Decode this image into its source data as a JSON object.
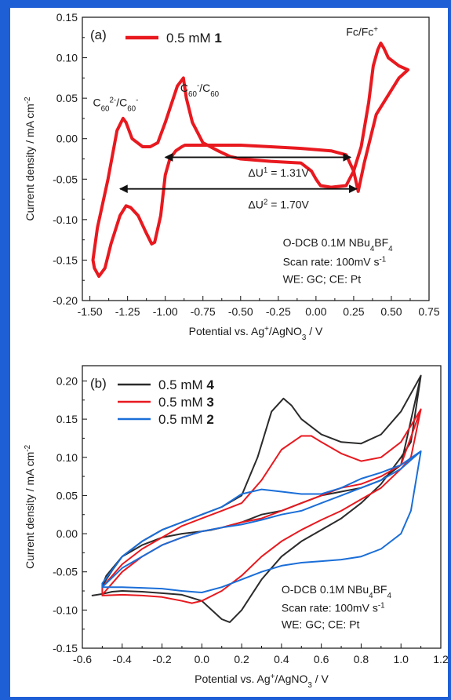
{
  "chart_data": [
    {
      "type": "line",
      "panel_label": "(a)",
      "xlabel": {
        "pre": "Potential vs. Ag",
        "sup": "+",
        "post": "/AgNO",
        "sub": "3",
        "post2": " / V"
      },
      "ylabel": {
        "pre": "Current density / mA cm",
        "sup": "-2"
      },
      "xlim": [
        -1.55,
        0.75
      ],
      "ylim": [
        -0.2,
        0.15
      ],
      "xticks": [
        "-1.50",
        "-1.25",
        "-1.00",
        "-0.75",
        "-0.50",
        "-0.25",
        "0.00",
        "0.25",
        "0.50",
        "0.75"
      ],
      "yticks": [
        "0.15",
        "0.10",
        "0.05",
        "0.00",
        "-0.05",
        "-0.10",
        "-0.15",
        "-0.20"
      ],
      "legend_placement": "top-left",
      "series": [
        {
          "name": "0.5 mM 1",
          "legend_pre": "0.5 mM ",
          "legend_bold": "1",
          "color": "#e8191f",
          "x": [
            0.61,
            0.55,
            0.48,
            0.45,
            0.43,
            0.41,
            0.38,
            0.35,
            0.3,
            0.25,
            0.2,
            0.1,
            0.03,
            0.0,
            -0.03,
            -0.1,
            -0.3,
            -0.5,
            -0.57,
            -0.65,
            -0.75,
            -0.82,
            -0.86,
            -0.88,
            -0.92,
            -1.0,
            -1.05,
            -1.1,
            -1.15,
            -1.22,
            -1.26,
            -1.28,
            -1.32,
            -1.38,
            -1.45,
            -1.48,
            -1.47,
            -1.44,
            -1.4,
            -1.36,
            -1.3,
            -1.26,
            -1.23,
            -1.18,
            -1.13,
            -1.09,
            -1.07,
            -1.03,
            -1.0,
            -0.97,
            -0.93,
            -0.89,
            -0.87,
            -0.85,
            -0.8,
            -0.7,
            -0.5,
            -0.3,
            -0.1,
            0.1,
            0.2,
            0.25,
            0.28,
            0.32,
            0.4,
            0.55,
            0.61
          ],
          "y": [
            0.085,
            0.09,
            0.1,
            0.112,
            0.118,
            0.11,
            0.09,
            0.045,
            -0.01,
            -0.04,
            -0.058,
            -0.06,
            -0.058,
            -0.05,
            -0.04,
            -0.03,
            -0.028,
            -0.025,
            -0.022,
            -0.015,
            -0.005,
            0.02,
            0.05,
            0.075,
            0.065,
            0.02,
            -0.005,
            -0.01,
            -0.01,
            0.0,
            0.02,
            0.025,
            0.01,
            -0.05,
            -0.11,
            -0.15,
            -0.16,
            -0.17,
            -0.16,
            -0.13,
            -0.095,
            -0.083,
            -0.085,
            -0.095,
            -0.115,
            -0.13,
            -0.128,
            -0.095,
            -0.045,
            -0.025,
            -0.015,
            -0.01,
            -0.008,
            -0.008,
            -0.008,
            -0.008,
            -0.008,
            -0.01,
            -0.012,
            -0.015,
            -0.02,
            -0.04,
            -0.065,
            -0.03,
            0.03,
            0.075,
            0.085
          ]
        }
      ],
      "annotations": [
        {
          "kind": "label",
          "x": -1.48,
          "y": 0.04,
          "parts": [
            [
              "C",
              "n"
            ],
            [
              "60",
              "sub"
            ],
            [
              "2-",
              "sup"
            ],
            [
              "/C",
              "n"
            ],
            [
              "60",
              "sub"
            ],
            [
              "-",
              "sup"
            ]
          ]
        },
        {
          "kind": "label",
          "x": -0.9,
          "y": 0.058,
          "parts": [
            [
              "C",
              "n"
            ],
            [
              "60",
              "sub"
            ],
            [
              "-",
              "sup"
            ],
            [
              "/C",
              "n"
            ],
            [
              "60",
              "sub"
            ]
          ]
        },
        {
          "kind": "label",
          "x": 0.2,
          "y": 0.127,
          "parts": [
            [
              "Fc/Fc",
              "n"
            ],
            [
              "+",
              "sup"
            ]
          ]
        },
        {
          "kind": "arrow",
          "x1": -1.0,
          "x2": 0.23,
          "y": -0.023
        },
        {
          "kind": "arrow",
          "x1": -1.3,
          "x2": 0.27,
          "y": -0.062
        },
        {
          "kind": "label",
          "x": -0.45,
          "y": -0.047,
          "parts": [
            [
              "ΔU",
              "n"
            ],
            [
              "1",
              "sup"
            ],
            [
              " = 1.31V",
              "n"
            ]
          ]
        },
        {
          "kind": "label",
          "x": -0.45,
          "y": -0.086,
          "parts": [
            [
              "ΔU",
              "n"
            ],
            [
              "2",
              "sup"
            ],
            [
              " = 1.70V",
              "n"
            ]
          ]
        },
        {
          "kind": "label",
          "x": -0.22,
          "y": -0.133,
          "parts": [
            [
              "O-DCB 0.1M NBu",
              "n"
            ],
            [
              "4",
              "sub"
            ],
            [
              "BF",
              "n"
            ],
            [
              "4",
              "sub"
            ]
          ]
        },
        {
          "kind": "label",
          "x": -0.22,
          "y": -0.157,
          "parts": [
            [
              "Scan rate: 100mV s",
              "n"
            ],
            [
              "-1",
              "sup"
            ]
          ]
        },
        {
          "kind": "label",
          "x": -0.22,
          "y": -0.178,
          "parts": [
            [
              "WE: GC; CE: Pt",
              "n"
            ]
          ]
        }
      ]
    },
    {
      "type": "line",
      "panel_label": "(b)",
      "xlabel": {
        "pre": "Potential vs. Ag",
        "sup": "+",
        "post": "/AgNO",
        "sub": "3",
        "post2": " / V"
      },
      "ylabel": {
        "pre": "Current density / mA cm",
        "sup": "-2"
      },
      "xlim": [
        -0.6,
        1.2
      ],
      "ylim": [
        -0.15,
        0.22
      ],
      "xticks": [
        "-0.6",
        "-0.4",
        "-0.2",
        "0.0",
        "0.2",
        "0.4",
        "0.6",
        "0.8",
        "1.0",
        "1.2"
      ],
      "yticks": [
        "0.20",
        "0.15",
        "0.10",
        "0.05",
        "0.00",
        "-0.05",
        "-0.10",
        "-0.15"
      ],
      "legend_placement": "top-left",
      "series": [
        {
          "name": "0.5 mM 4",
          "legend_pre": "0.5 mM ",
          "legend_bold": "4",
          "color": "#2b2b2b",
          "x": [
            -0.55,
            -0.5,
            -0.45,
            -0.4,
            -0.3,
            -0.2,
            -0.1,
            0.0,
            0.05,
            0.1,
            0.14,
            0.2,
            0.3,
            0.4,
            0.5,
            0.6,
            0.7,
            0.8,
            0.9,
            1.0,
            1.05,
            1.1,
            1.1,
            1.0,
            0.9,
            0.8,
            0.7,
            0.6,
            0.5,
            0.45,
            0.41,
            0.35,
            0.28,
            0.2,
            0.1,
            0.0,
            -0.1,
            -0.2,
            -0.3,
            -0.4,
            -0.48,
            -0.5,
            -0.45,
            -0.4,
            -0.3,
            -0.2,
            -0.1,
            0.0,
            0.05,
            0.1,
            0.2,
            0.3,
            0.4,
            0.5,
            0.6,
            0.7,
            0.8,
            0.9,
            1.0,
            1.1
          ],
          "y": [
            -0.081,
            -0.079,
            -0.076,
            -0.075,
            -0.076,
            -0.078,
            -0.08,
            -0.088,
            -0.1,
            -0.112,
            -0.116,
            -0.1,
            -0.06,
            -0.03,
            -0.01,
            0.005,
            0.02,
            0.04,
            0.065,
            0.1,
            0.12,
            0.207,
            0.207,
            0.16,
            0.13,
            0.118,
            0.12,
            0.13,
            0.15,
            0.168,
            0.177,
            0.16,
            0.1,
            0.05,
            0.035,
            0.025,
            0.015,
            0.005,
            -0.01,
            -0.03,
            -0.055,
            -0.068,
            -0.048,
            -0.03,
            -0.015,
            -0.005,
            0.0,
            0.003,
            0.005,
            0.008,
            0.015,
            0.025,
            0.03,
            0.04,
            0.05,
            0.055,
            0.06,
            0.07,
            0.09,
            0.207
          ]
        },
        {
          "name": "0.5 mM 3",
          "legend_pre": "0.5 mM ",
          "legend_bold": "3",
          "color": "#e8191f",
          "x": [
            -0.5,
            -0.4,
            -0.3,
            -0.2,
            -0.1,
            -0.05,
            0.0,
            0.1,
            0.2,
            0.3,
            0.4,
            0.5,
            0.6,
            0.7,
            0.8,
            0.9,
            1.0,
            1.05,
            1.1,
            1.1,
            1.0,
            0.9,
            0.8,
            0.7,
            0.6,
            0.55,
            0.5,
            0.4,
            0.3,
            0.2,
            0.1,
            0.0,
            -0.1,
            -0.2,
            -0.3,
            -0.4,
            -0.5,
            -0.5,
            -0.4,
            -0.3,
            -0.2,
            -0.1,
            0.0,
            0.1,
            0.2,
            0.3,
            0.4,
            0.5,
            0.6,
            0.7,
            0.8,
            0.9,
            1.0,
            1.1
          ],
          "y": [
            -0.081,
            -0.08,
            -0.081,
            -0.083,
            -0.088,
            -0.091,
            -0.088,
            -0.075,
            -0.055,
            -0.03,
            -0.01,
            0.005,
            0.018,
            0.03,
            0.045,
            0.06,
            0.085,
            0.1,
            0.163,
            0.163,
            0.12,
            0.1,
            0.095,
            0.105,
            0.12,
            0.128,
            0.128,
            0.11,
            0.07,
            0.04,
            0.03,
            0.02,
            0.01,
            -0.005,
            -0.02,
            -0.04,
            -0.07,
            -0.08,
            -0.05,
            -0.03,
            -0.015,
            -0.005,
            0.003,
            0.008,
            0.015,
            0.02,
            0.03,
            0.04,
            0.05,
            0.06,
            0.065,
            0.075,
            0.09,
            0.163
          ]
        },
        {
          "name": "0.5 mM 2",
          "legend_pre": "0.5 mM ",
          "legend_bold": "2",
          "color": "#1a6ed8",
          "x": [
            -0.5,
            -0.4,
            -0.3,
            -0.2,
            -0.1,
            0.0,
            0.1,
            0.2,
            0.3,
            0.4,
            0.5,
            0.6,
            0.7,
            0.8,
            0.9,
            1.0,
            1.05,
            1.1,
            1.1,
            1.0,
            0.9,
            0.8,
            0.7,
            0.6,
            0.5,
            0.4,
            0.3,
            0.2,
            0.1,
            0.0,
            -0.1,
            -0.2,
            -0.3,
            -0.4,
            -0.5,
            -0.5,
            -0.4,
            -0.3,
            -0.2,
            -0.1,
            0.0,
            0.1,
            0.2,
            0.3,
            0.4,
            0.5,
            0.6,
            0.7,
            0.8,
            0.9,
            1.0,
            1.1
          ],
          "y": [
            -0.07,
            -0.07,
            -0.071,
            -0.072,
            -0.075,
            -0.077,
            -0.07,
            -0.06,
            -0.05,
            -0.042,
            -0.038,
            -0.036,
            -0.034,
            -0.03,
            -0.02,
            0.0,
            0.03,
            0.108,
            0.108,
            0.09,
            0.08,
            0.072,
            0.06,
            0.052,
            0.052,
            0.055,
            0.058,
            0.052,
            0.035,
            0.025,
            0.015,
            0.005,
            -0.01,
            -0.03,
            -0.065,
            -0.07,
            -0.045,
            -0.03,
            -0.015,
            -0.005,
            0.003,
            0.008,
            0.012,
            0.018,
            0.025,
            0.03,
            0.04,
            0.05,
            0.06,
            0.07,
            0.085,
            0.108
          ]
        }
      ],
      "annotations": [
        {
          "kind": "label",
          "x": 0.4,
          "y": -0.078,
          "parts": [
            [
              "O-DCB 0.1M NBu",
              "n"
            ],
            [
              "4",
              "sub"
            ],
            [
              "BF",
              "n"
            ],
            [
              "4",
              "sub"
            ]
          ]
        },
        {
          "kind": "label",
          "x": 0.4,
          "y": -0.102,
          "parts": [
            [
              "Scan rate: 100mV s",
              "n"
            ],
            [
              "-1",
              "sup"
            ]
          ]
        },
        {
          "kind": "label",
          "x": 0.4,
          "y": -0.124,
          "parts": [
            [
              "WE: GC; CE: Pt",
              "n"
            ]
          ]
        }
      ]
    }
  ]
}
